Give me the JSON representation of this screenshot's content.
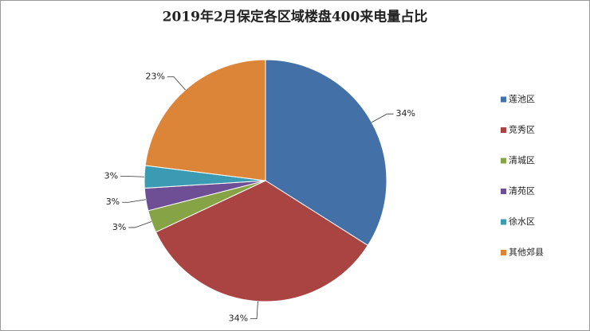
{
  "chart_data": {
    "type": "pie",
    "title": "2019年2月保定各区域楼盘400来电量占比",
    "categories": [
      "莲池区",
      "竞秀区",
      "清城区",
      "清苑区",
      "徐水区",
      "其他郊县"
    ],
    "values": [
      34,
      34,
      3,
      3,
      3,
      23
    ],
    "value_labels": [
      "34%",
      "34%",
      "3%",
      "3%",
      "3%",
      "23%"
    ],
    "colors": [
      "#4470a8",
      "#a94442",
      "#86a445",
      "#6e4e94",
      "#3b9bb3",
      "#dc8538"
    ],
    "legend": "right"
  }
}
